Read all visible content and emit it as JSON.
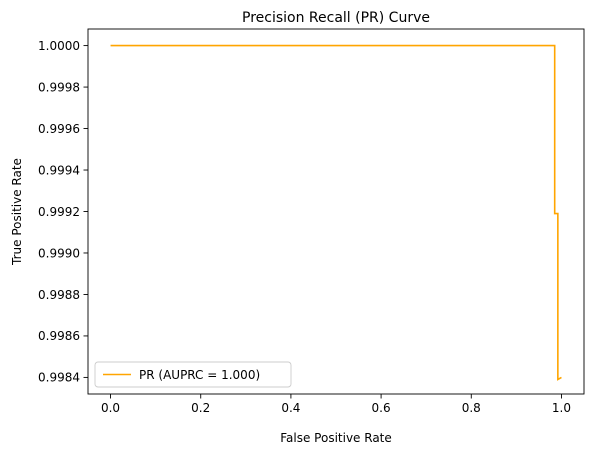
{
  "chart_data": {
    "type": "line",
    "title": "Precision Recall (PR) Curve",
    "xlabel": "False Positive Rate",
    "ylabel": "True Positive Rate",
    "xlim": [
      -0.05,
      1.05
    ],
    "ylim": [
      0.99832,
      1.00008
    ],
    "xticks": [
      0.0,
      0.2,
      0.4,
      0.6,
      0.8,
      1.0
    ],
    "xtick_labels": [
      "0.0",
      "0.2",
      "0.4",
      "0.6",
      "0.8",
      "1.0"
    ],
    "yticks": [
      0.9984,
      0.9986,
      0.9988,
      0.999,
      0.9992,
      0.9994,
      0.9996,
      0.9998,
      1.0
    ],
    "ytick_labels": [
      "0.9984",
      "0.9986",
      "0.9988",
      "0.9990",
      "0.9992",
      "0.9994",
      "0.9996",
      "0.9998",
      "1.0000"
    ],
    "grid": false,
    "legend_position": "bottom-left",
    "series": [
      {
        "name": "PR (AUPRC = 1.000)",
        "color": "#ffa500",
        "x": [
          0.0,
          0.985,
          0.985,
          0.992,
          0.992,
          1.0
        ],
        "y": [
          1.0,
          1.0,
          0.99919,
          0.99919,
          0.99839,
          0.9984
        ]
      }
    ]
  }
}
